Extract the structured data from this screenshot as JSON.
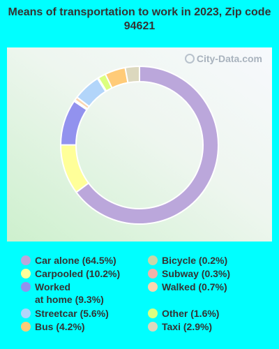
{
  "chart_data": {
    "type": "pie",
    "style": "donut",
    "title": "Means of transportation to work in 2023, Zip code 94621",
    "slices": [
      {
        "name": "Car alone",
        "label": "Car alone (64.5%)",
        "value": 64.5,
        "color": "#BBA7DB"
      },
      {
        "name": "Carpooled",
        "label": "Carpooled (10.2%)",
        "value": 10.2,
        "color": "#FFFF99"
      },
      {
        "name": "Worked at home",
        "label": "Worked\nat home (9.3%)",
        "value": 9.3,
        "color": "#9292EE"
      },
      {
        "name": "Subway",
        "label": "Subway (0.3%)",
        "value": 0.3,
        "color": "#F2B1A9"
      },
      {
        "name": "Walked",
        "label": "Walked (0.7%)",
        "value": 0.7,
        "color": "#FBD6B0"
      },
      {
        "name": "Streetcar",
        "label": "Streetcar (5.6%)",
        "value": 5.6,
        "color": "#B2D5FA"
      },
      {
        "name": "Bicycle",
        "label": "Bicycle (0.2%)",
        "value": 0.2,
        "color": "#C9D7A8"
      },
      {
        "name": "Other",
        "label": "Other (1.6%)",
        "value": 1.6,
        "color": "#DCFF80"
      },
      {
        "name": "Bus",
        "label": "Bus (4.2%)",
        "value": 4.2,
        "color": "#FFCB78"
      },
      {
        "name": "Taxi",
        "label": "Taxi (2.9%)",
        "value": 2.9,
        "color": "#DCD8BE"
      }
    ],
    "legend_order": [
      "Car alone",
      "Carpooled",
      "Worked at home",
      "Streetcar",
      "Bus",
      "Bicycle",
      "Subway",
      "Walked",
      "Other",
      "Taxi"
    ],
    "legend_placement": "bottom"
  },
  "watermark": {
    "text": "City-Data.com",
    "icon": "magnifier-icon"
  },
  "background_color": "#00FFFF"
}
